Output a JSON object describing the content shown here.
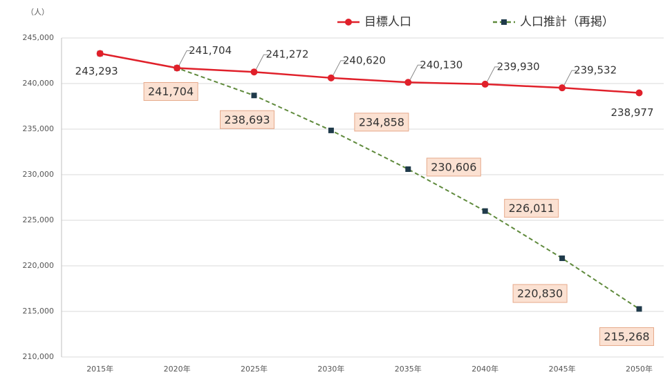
{
  "chart_data": {
    "type": "line",
    "y_unit": "（人）",
    "categories": [
      "2015年",
      "2020年",
      "2025年",
      "2030年",
      "2035年",
      "2040年",
      "2045年",
      "2050年"
    ],
    "series": [
      {
        "name": "目標人口",
        "color": "#e0202a",
        "values": [
          243293,
          241704,
          241272,
          240620,
          240130,
          239930,
          239532,
          238977
        ],
        "value_labels": [
          "243,293",
          "241,704",
          "241,272",
          "240,620",
          "240,130",
          "239,930",
          "239,532",
          "238,977"
        ]
      },
      {
        "name": "人口推計（再掲）",
        "color": "#5f8a3c",
        "marker_color": "#1f3a4a",
        "dashed": true,
        "values": [
          243293,
          241704,
          238693,
          234858,
          230606,
          226011,
          220830,
          215268
        ],
        "value_labels": [
          null,
          "241,704",
          "238,693",
          "234,858",
          "230,606",
          "226,011",
          "220,830",
          "215,268"
        ]
      }
    ],
    "ylim": [
      210000,
      245000
    ],
    "yticks": [
      {
        "value": 210000,
        "label": "210,000"
      },
      {
        "value": 215000,
        "label": "215,000"
      },
      {
        "value": 220000,
        "label": "220,000"
      },
      {
        "value": 225000,
        "label": "225,000"
      },
      {
        "value": 230000,
        "label": "230,000"
      },
      {
        "value": 235000,
        "label": "235,000"
      },
      {
        "value": 240000,
        "label": "240,000"
      },
      {
        "value": 245000,
        "label": "245,000"
      }
    ],
    "grid": true,
    "legend": "top"
  }
}
